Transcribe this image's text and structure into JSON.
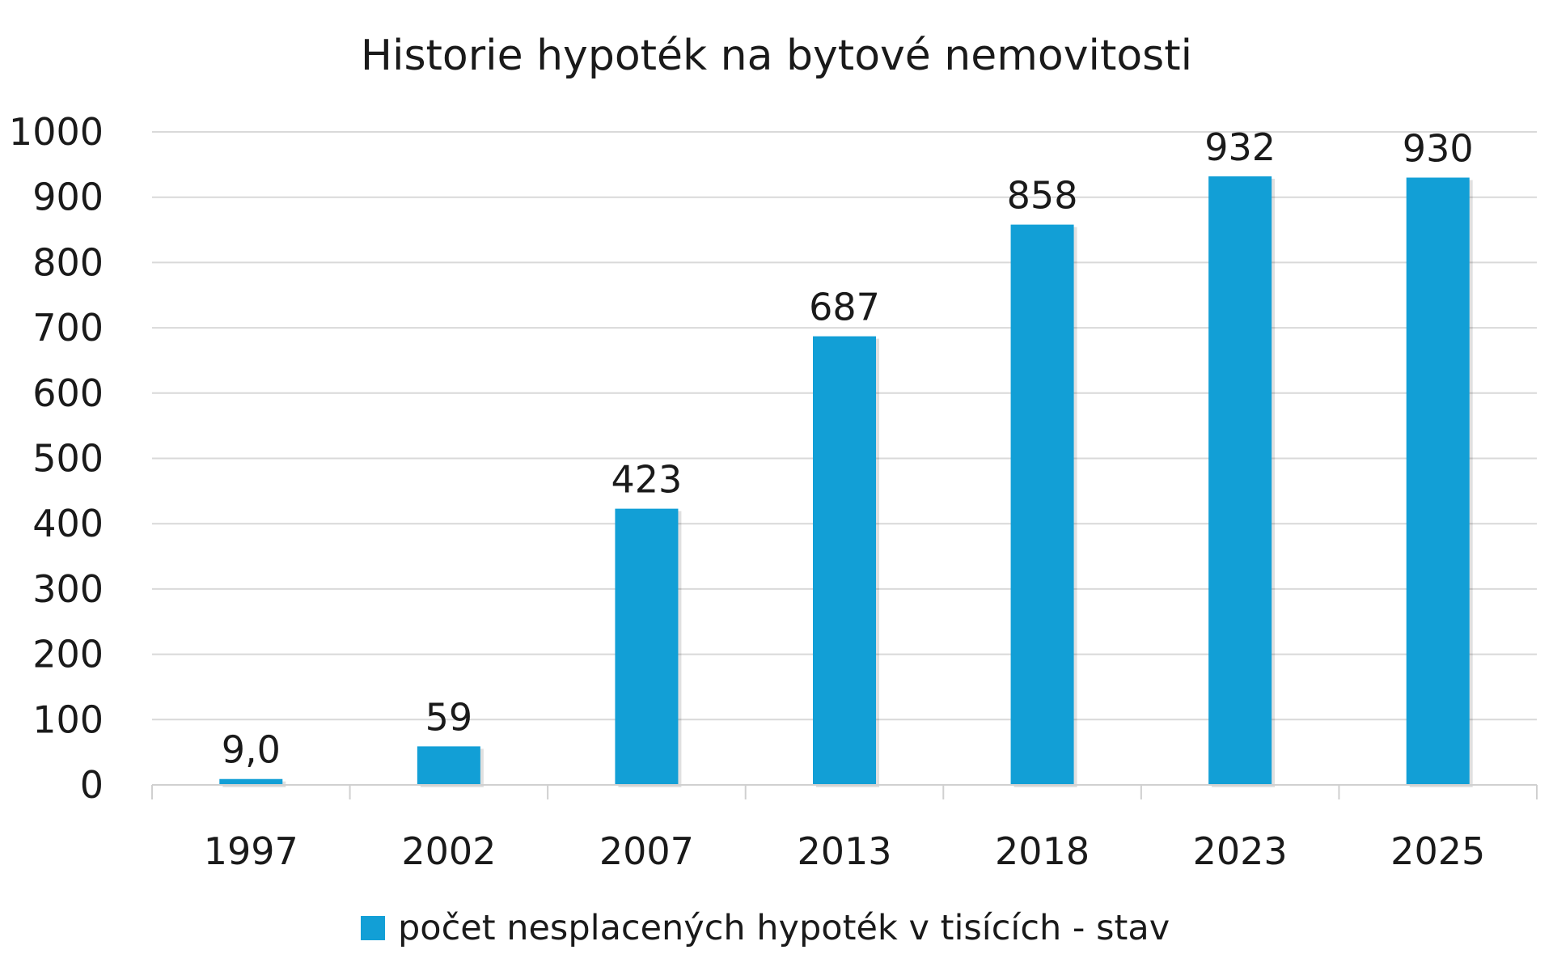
{
  "chart_data": {
    "type": "bar",
    "title": "Historie hypoték na bytové nemovitosti",
    "xlabel": "",
    "ylabel": "",
    "categories": [
      "1997",
      "2002",
      "2007",
      "2013",
      "2018",
      "2023",
      "2025"
    ],
    "series": [
      {
        "name": "počet nesplacených hypoték v tisících - stav",
        "values": [
          9,
          59,
          423,
          687,
          858,
          932,
          930
        ],
        "data_labels": [
          "9,0",
          "59",
          "423",
          "687",
          "858",
          "932",
          "930"
        ],
        "color": "#129fd6"
      }
    ],
    "ylim": [
      0,
      1000
    ],
    "y_ticks": [
      0,
      100,
      200,
      300,
      400,
      500,
      600,
      700,
      800,
      900,
      1000
    ],
    "grid": true,
    "legend_position": "bottom"
  }
}
